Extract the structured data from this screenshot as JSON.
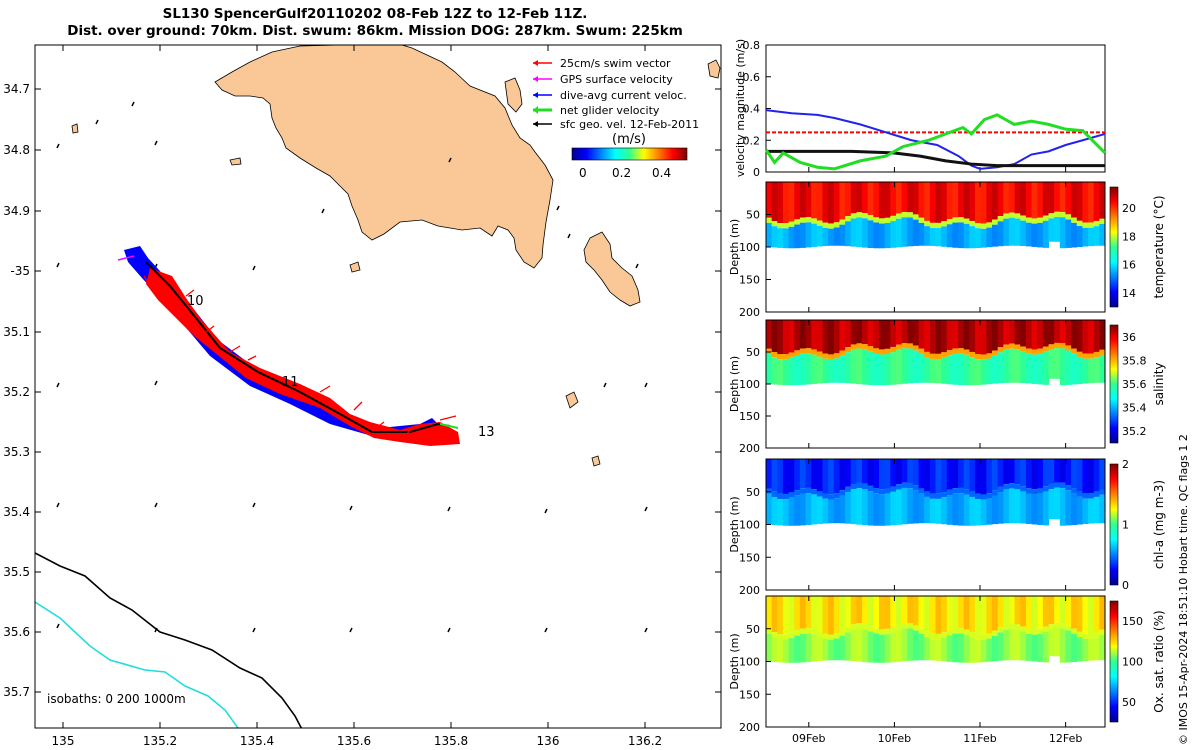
{
  "title": {
    "line1": "SL130 SpencerGulf20110202 08-Feb 12Z to 12-Feb 11Z.",
    "line2": "Dist. over ground: 70km. Dist. swum: 86km. Mission DOG: 287km. Swum: 225km"
  },
  "colors": {
    "land": "#f9c896",
    "swim": "#ff0000",
    "gps": "#ff00ff",
    "dive": "#0000ff",
    "net": "#22dd22",
    "sfc": "#000000",
    "isobath200": "#000000",
    "isobath1000": "#22dddd"
  },
  "map": {
    "lon_ticks": [
      "135",
      "135.2",
      "135.4",
      "135.6",
      "135.8",
      "136",
      "136.2"
    ],
    "lat_ticks": [
      "34.7",
      "34.8",
      "34.9",
      "-35",
      "35.1",
      "35.2",
      "35.3",
      "35.4",
      "35.5",
      "35.6",
      "35.7"
    ],
    "legend": {
      "items": [
        "25cm/s swim vector",
        "GPS surface velocity",
        "dive-avg current veloc.",
        "net glider velocity",
        "sfc geo. vel. 12-Feb-2011"
      ],
      "colorbar_title": "(m/s)",
      "colorbar_ticks": [
        "0",
        "0.2",
        "0.4"
      ]
    },
    "day_labels": [
      "10",
      "11",
      "13"
    ],
    "isobath_label": "isobaths: 0   200   1000m"
  },
  "chart_data": [
    {
      "type": "line",
      "title": "",
      "ylabel": "velocity magnitude (m/s)",
      "ylim": [
        0,
        0.8
      ],
      "y_ticks": [
        "0",
        "0.2",
        "0.4",
        "0.6",
        "0.8"
      ],
      "x_ticks": [
        "09Feb",
        "10Feb",
        "11Feb",
        "12Feb"
      ],
      "x_range_days": [
        8.5,
        12.46
      ],
      "series": [
        {
          "name": "swim threshold",
          "color": "red",
          "x": [
            8.5,
            12.46
          ],
          "values": [
            0.25,
            0.25
          ]
        },
        {
          "name": "dive-avg current",
          "color": "blue",
          "x": [
            8.5,
            8.8,
            9.1,
            9.3,
            9.6,
            9.9,
            10.2,
            10.5,
            10.75,
            10.9,
            11.0,
            11.2,
            11.4,
            11.6,
            11.8,
            12.0,
            12.2,
            12.46
          ],
          "values": [
            0.39,
            0.37,
            0.36,
            0.34,
            0.3,
            0.25,
            0.2,
            0.17,
            0.1,
            0.04,
            0.02,
            0.03,
            0.05,
            0.11,
            0.13,
            0.17,
            0.2,
            0.24
          ]
        },
        {
          "name": "sfc geostrophic",
          "color": "black",
          "x": [
            8.5,
            9.0,
            9.5,
            10.0,
            10.3,
            10.6,
            10.9,
            11.2,
            11.6,
            12.0,
            12.46
          ],
          "values": [
            0.13,
            0.13,
            0.13,
            0.12,
            0.1,
            0.07,
            0.05,
            0.04,
            0.04,
            0.04,
            0.04
          ]
        },
        {
          "name": "net glider velocity",
          "color": "green",
          "x": [
            8.5,
            8.6,
            8.7,
            8.9,
            9.1,
            9.3,
            9.6,
            9.9,
            10.1,
            10.4,
            10.6,
            10.8,
            10.9,
            11.05,
            11.2,
            11.4,
            11.6,
            11.8,
            12.0,
            12.2,
            12.46
          ],
          "values": [
            0.14,
            0.06,
            0.12,
            0.06,
            0.03,
            0.02,
            0.07,
            0.1,
            0.16,
            0.2,
            0.24,
            0.28,
            0.24,
            0.33,
            0.36,
            0.3,
            0.32,
            0.3,
            0.27,
            0.26,
            0.12
          ]
        }
      ]
    },
    {
      "type": "heatmap",
      "ylabel": "Depth (m)",
      "colorbar_label": "temperature (°C)",
      "colorbar_ticks": [
        "14",
        "16",
        "18",
        "20"
      ],
      "clim": [
        13,
        21.5
      ],
      "y_ticks": [
        "50",
        "100",
        "150",
        "200"
      ],
      "ylim": [
        200,
        0
      ],
      "x_ticks": [
        "09Feb",
        "10Feb",
        "11Feb",
        "12Feb"
      ],
      "mixed_layer": 20.5,
      "deep": 15.5,
      "interface_depth_m": 55,
      "bottom_depth_m": 100
    },
    {
      "type": "heatmap",
      "ylabel": "Depth (m)",
      "colorbar_label": "salinity",
      "colorbar_ticks": [
        "35.2",
        "35.4",
        "35.6",
        "35.8",
        "36"
      ],
      "clim": [
        35.1,
        36.1
      ],
      "y_ticks": [
        "50",
        "100",
        "150",
        "200"
      ],
      "ylim": [
        200,
        0
      ],
      "x_ticks": [
        "09Feb",
        "10Feb",
        "11Feb",
        "12Feb"
      ],
      "mixed_layer": 36.05,
      "deep": 35.58,
      "interface_depth_m": 45,
      "bottom_depth_m": 100
    },
    {
      "type": "heatmap",
      "ylabel": "Depth (m)",
      "colorbar_label": "chl-a (mg m-3)",
      "colorbar_ticks": [
        "0",
        "1",
        "2"
      ],
      "clim": [
        0,
        2
      ],
      "y_ticks": [
        "50",
        "100",
        "150",
        "200"
      ],
      "ylim": [
        200,
        0
      ],
      "x_ticks": [
        "09Feb",
        "10Feb",
        "11Feb",
        "12Feb"
      ],
      "mixed_layer": 0.3,
      "deep": 0.6,
      "interface_depth_m": 45,
      "bottom_depth_m": 100
    },
    {
      "type": "heatmap",
      "ylabel": "Depth (m)",
      "colorbar_label": "Ox. sat. ratio (%)",
      "colorbar_ticks": [
        "50",
        "100",
        "150"
      ],
      "clim": [
        25,
        175
      ],
      "y_ticks": [
        "50",
        "100",
        "150",
        "200"
      ],
      "ylim": [
        200,
        0
      ],
      "x_ticks": [
        "09Feb",
        "10Feb",
        "11Feb",
        "12Feb"
      ],
      "mixed_layer": 122,
      "deep": 108,
      "interface_depth_m": 50,
      "bottom_depth_m": 100
    }
  ],
  "footer": {
    "credit": "© IMOS 15-Apr-2024 18:51:10 Hobart time. QC flags 1  2"
  }
}
